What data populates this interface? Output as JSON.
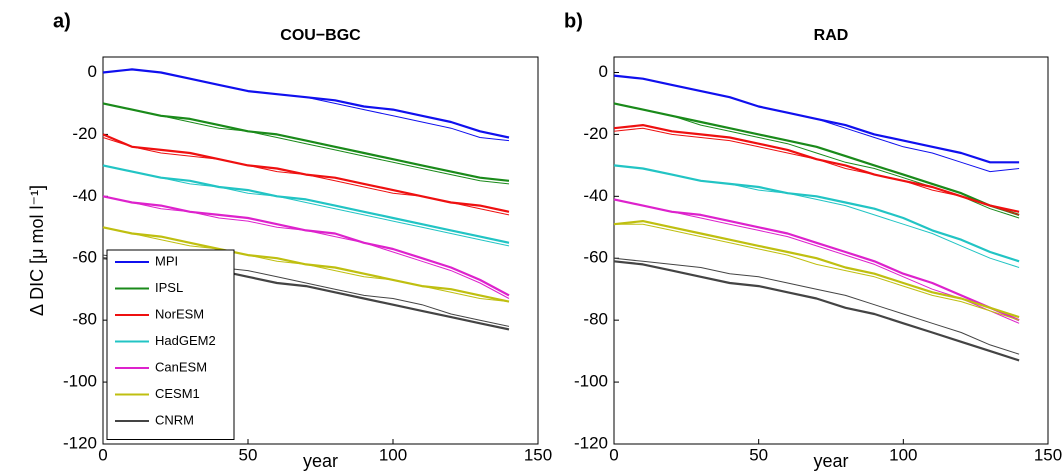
{
  "chart_data": [
    {
      "type": "line",
      "label": "a)",
      "title": "COU−BGC",
      "xlabel": "year",
      "ylabel": "Δ DIC [μ mol l⁻¹]",
      "x": [
        0,
        10,
        20,
        30,
        40,
        50,
        60,
        70,
        80,
        90,
        100,
        110,
        120,
        130,
        140
      ],
      "xlim": [
        0,
        150
      ],
      "ylim": [
        -120,
        5
      ],
      "xticks": [
        0,
        50,
        100,
        150
      ],
      "yticks": [
        0,
        -20,
        -40,
        -60,
        -80,
        -100,
        -120
      ],
      "legend": "lower left",
      "series": [
        {
          "name": "MPI",
          "color": "#1010ee",
          "values": [
            0,
            1,
            0,
            -2,
            -4,
            -6,
            -7,
            -8,
            -9,
            -11,
            -12,
            -14,
            -16,
            -19,
            -21
          ],
          "values2": [
            0,
            1,
            0,
            -2,
            -4,
            -6,
            -7,
            -8,
            -10,
            -12,
            -14,
            -16,
            -18,
            -21,
            -22
          ]
        },
        {
          "name": "IPSL",
          "color": "#1a8a1a",
          "values": [
            -10,
            -12,
            -14,
            -15,
            -17,
            -19,
            -20,
            -22,
            -24,
            -26,
            -28,
            -30,
            -32,
            -34,
            -35
          ],
          "values2": [
            -10,
            -12,
            -14,
            -16,
            -18,
            -19,
            -21,
            -23,
            -25,
            -27,
            -29,
            -31,
            -33,
            -35,
            -36
          ]
        },
        {
          "name": "NorESM",
          "color": "#ee1010",
          "values": [
            -20,
            -24,
            -25,
            -26,
            -28,
            -30,
            -31,
            -33,
            -34,
            -36,
            -38,
            -40,
            -42,
            -43,
            -45
          ],
          "values2": [
            -21,
            -24,
            -26,
            -27,
            -28,
            -30,
            -32,
            -33,
            -35,
            -37,
            -39,
            -40,
            -42,
            -44,
            -46
          ]
        },
        {
          "name": "HadGEM2",
          "color": "#22c4c4",
          "values": [
            -30,
            -32,
            -34,
            -35,
            -37,
            -38,
            -40,
            -41,
            -43,
            -45,
            -47,
            -49,
            -51,
            -53,
            -55
          ],
          "values2": [
            -30,
            -32,
            -34,
            -36,
            -37,
            -39,
            -40,
            -42,
            -44,
            -46,
            -48,
            -50,
            -52,
            -54,
            -56
          ]
        },
        {
          "name": "CanESM",
          "color": "#dd22cc",
          "values": [
            -40,
            -42,
            -43,
            -45,
            -46,
            -47,
            -49,
            -51,
            -52,
            -55,
            -57,
            -60,
            -63,
            -67,
            -72
          ],
          "values2": [
            -40,
            -42,
            -44,
            -45,
            -47,
            -48,
            -50,
            -51,
            -53,
            -55,
            -58,
            -61,
            -64,
            -68,
            -73
          ]
        },
        {
          "name": "CESM1",
          "color": "#bfbf10",
          "values": [
            -50,
            -52,
            -53,
            -55,
            -57,
            -59,
            -60,
            -62,
            -63,
            -65,
            -67,
            -69,
            -70,
            -72,
            -74
          ],
          "values2": [
            -50,
            -52,
            -54,
            -56,
            -57,
            -59,
            -61,
            -62,
            -64,
            -66,
            -67,
            -69,
            -71,
            -73,
            -74
          ]
        },
        {
          "name": "CNRM",
          "color": "#444444",
          "values": [
            -60,
            -61,
            -62,
            -63,
            -64,
            -66,
            -68,
            -69,
            -71,
            -73,
            -75,
            -77,
            -79,
            -81,
            -83
          ],
          "values2": [
            -59,
            -60,
            -61,
            -62,
            -63,
            -64,
            -66,
            -68,
            -70,
            -72,
            -73,
            -75,
            -78,
            -80,
            -82
          ]
        }
      ]
    },
    {
      "type": "line",
      "label": "b)",
      "title": "RAD",
      "xlabel": "year",
      "x": [
        0,
        10,
        20,
        30,
        40,
        50,
        60,
        70,
        80,
        90,
        100,
        110,
        120,
        130,
        140
      ],
      "xlim": [
        0,
        150
      ],
      "ylim": [
        -120,
        5
      ],
      "xticks": [
        0,
        50,
        100,
        150
      ],
      "yticks": [
        0,
        -20,
        -40,
        -60,
        -80,
        -100,
        -120
      ],
      "series": [
        {
          "color": "#1010ee",
          "values": [
            -1,
            -2,
            -4,
            -6,
            -8,
            -11,
            -13,
            -15,
            -17,
            -20,
            -22,
            -24,
            -26,
            -29,
            -29
          ],
          "values2": [
            -1,
            -2,
            -4,
            -6,
            -8,
            -11,
            -13,
            -15,
            -18,
            -21,
            -24,
            -26,
            -29,
            -32,
            -31
          ]
        },
        {
          "color": "#1a8a1a",
          "values": [
            -10,
            -12,
            -14,
            -16,
            -18,
            -20,
            -22,
            -24,
            -27,
            -30,
            -33,
            -36,
            -39,
            -43,
            -46
          ],
          "values2": [
            -10,
            -12,
            -14,
            -17,
            -19,
            -21,
            -23,
            -26,
            -29,
            -31,
            -34,
            -37,
            -40,
            -44,
            -47
          ]
        },
        {
          "color": "#ee1010",
          "values": [
            -18,
            -17,
            -19,
            -20,
            -21,
            -23,
            -25,
            -28,
            -30,
            -33,
            -35,
            -37,
            -40,
            -43,
            -45
          ],
          "values2": [
            -19,
            -18,
            -20,
            -21,
            -22,
            -24,
            -26,
            -28,
            -31,
            -33,
            -35,
            -38,
            -40,
            -43,
            -46
          ]
        },
        {
          "color": "#22c4c4",
          "values": [
            -30,
            -31,
            -33,
            -35,
            -36,
            -37,
            -39,
            -40,
            -42,
            -44,
            -47,
            -51,
            -54,
            -58,
            -61
          ],
          "values2": [
            -30,
            -31,
            -33,
            -35,
            -36,
            -38,
            -39,
            -41,
            -43,
            -46,
            -49,
            -52,
            -56,
            -60,
            -63
          ]
        },
        {
          "color": "#dd22cc",
          "values": [
            -41,
            -43,
            -45,
            -46,
            -48,
            -50,
            -52,
            -55,
            -58,
            -61,
            -65,
            -68,
            -72,
            -76,
            -80
          ],
          "values2": [
            -41,
            -43,
            -45,
            -47,
            -49,
            -51,
            -53,
            -56,
            -59,
            -62,
            -66,
            -70,
            -73,
            -77,
            -81
          ]
        },
        {
          "color": "#bfbf10",
          "values": [
            -49,
            -48,
            -50,
            -52,
            -54,
            -56,
            -58,
            -60,
            -63,
            -65,
            -68,
            -71,
            -73,
            -76,
            -79
          ],
          "values2": [
            -49,
            -49,
            -51,
            -53,
            -55,
            -57,
            -59,
            -62,
            -64,
            -66,
            -69,
            -72,
            -74,
            -77,
            -80
          ]
        },
        {
          "color": "#444444",
          "values": [
            -61,
            -62,
            -64,
            -66,
            -68,
            -69,
            -71,
            -73,
            -76,
            -78,
            -81,
            -84,
            -87,
            -90,
            -93
          ],
          "values2": [
            -60,
            -61,
            -62,
            -63,
            -65,
            -66,
            -68,
            -70,
            -72,
            -75,
            -78,
            -81,
            -84,
            -88,
            -91
          ]
        }
      ]
    }
  ]
}
